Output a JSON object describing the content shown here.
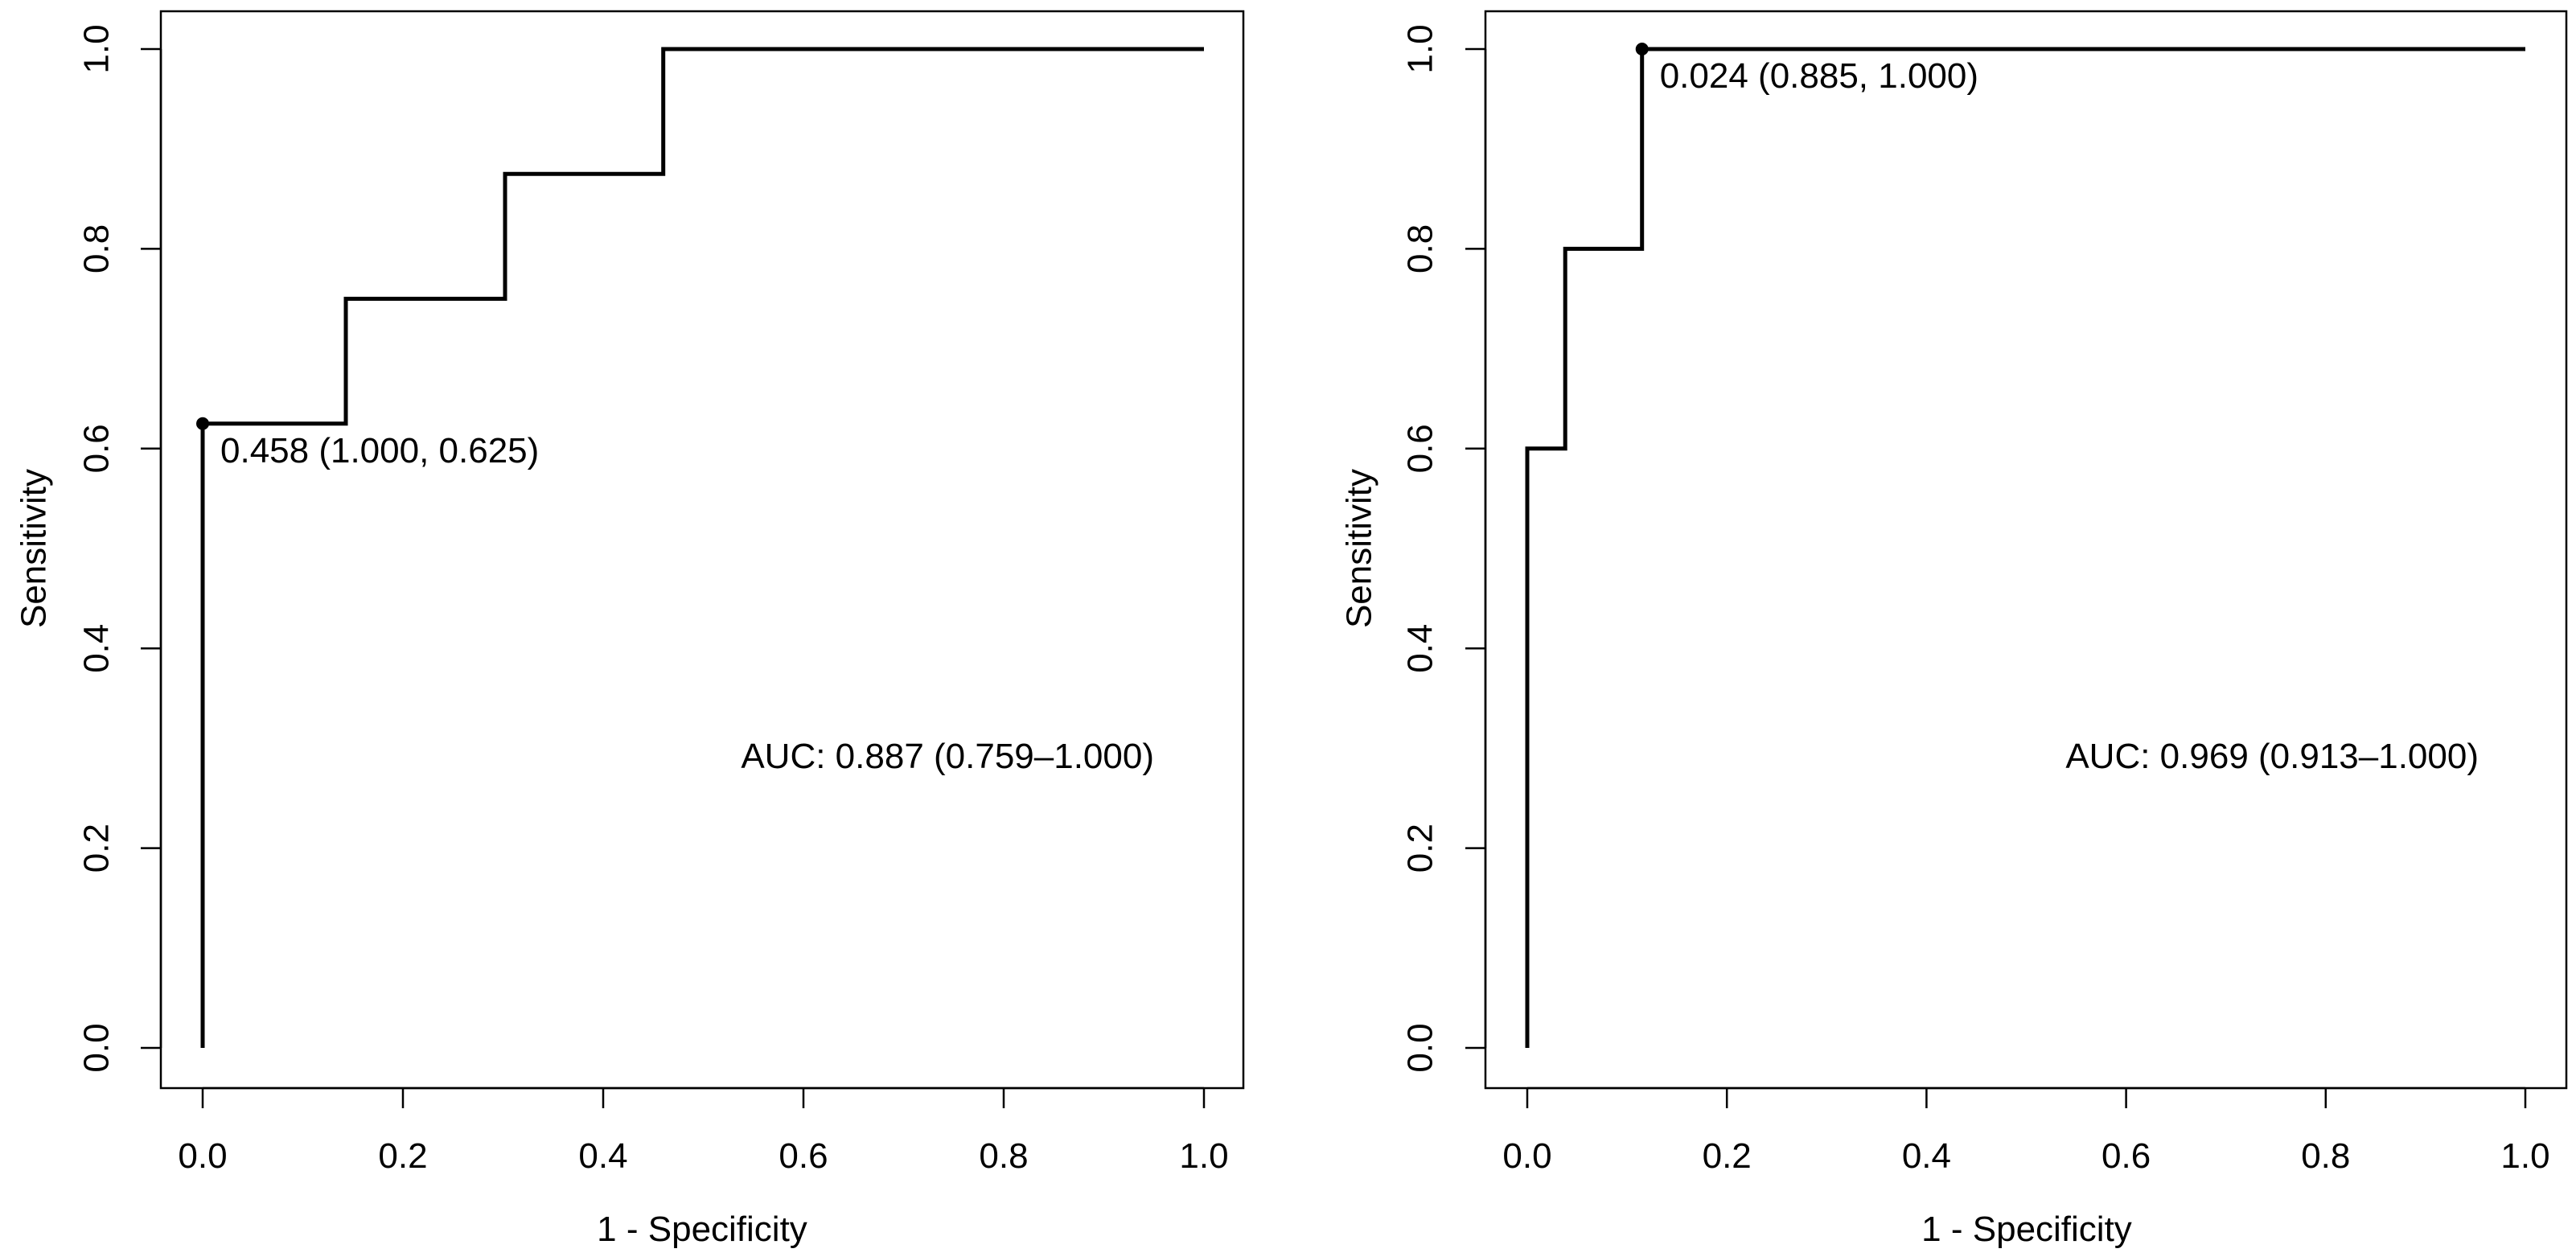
{
  "chart_data": [
    {
      "type": "line",
      "title": "",
      "xlabel": "1 - Specificity",
      "ylabel": "Sensitivity",
      "xlim": [
        0,
        1
      ],
      "ylim": [
        0,
        1
      ],
      "xticks": [
        "0.0",
        "0.2",
        "0.4",
        "0.6",
        "0.8",
        "1.0"
      ],
      "yticks": [
        "0.0",
        "0.2",
        "0.4",
        "0.6",
        "0.8",
        "1.0"
      ],
      "grid": false,
      "series": [
        {
          "x": [
            0,
            0,
            0.143,
            0.143,
            0.302,
            0.302,
            0.46,
            0.46,
            1.0
          ],
          "y": [
            0,
            0.625,
            0.625,
            0.75,
            0.75,
            0.875,
            0.875,
            1.0,
            1.0
          ]
        }
      ],
      "threshold_point": {
        "x": 0.0,
        "y": 0.625,
        "label": "0.458 (1.000, 0.625)"
      },
      "auc_label": "AUC: 0.887 (0.759–1.000)"
    },
    {
      "type": "line",
      "title": "",
      "xlabel": "1 - Specificity",
      "ylabel": "Sensitivity",
      "xlim": [
        0,
        1
      ],
      "ylim": [
        0,
        1
      ],
      "xticks": [
        "0.0",
        "0.2",
        "0.4",
        "0.6",
        "0.8",
        "1.0"
      ],
      "yticks": [
        "0.0",
        "0.2",
        "0.4",
        "0.6",
        "0.8",
        "1.0"
      ],
      "grid": false,
      "series": [
        {
          "x": [
            0,
            0,
            0.038,
            0.038,
            0.115,
            0.115,
            1.0
          ],
          "y": [
            0,
            0.6,
            0.6,
            0.8,
            0.8,
            1.0,
            1.0
          ]
        }
      ],
      "threshold_point": {
        "x": 0.115,
        "y": 1.0,
        "label": "0.024 (0.885, 1.000)"
      },
      "auc_label": "AUC: 0.969 (0.913–1.000)"
    }
  ]
}
